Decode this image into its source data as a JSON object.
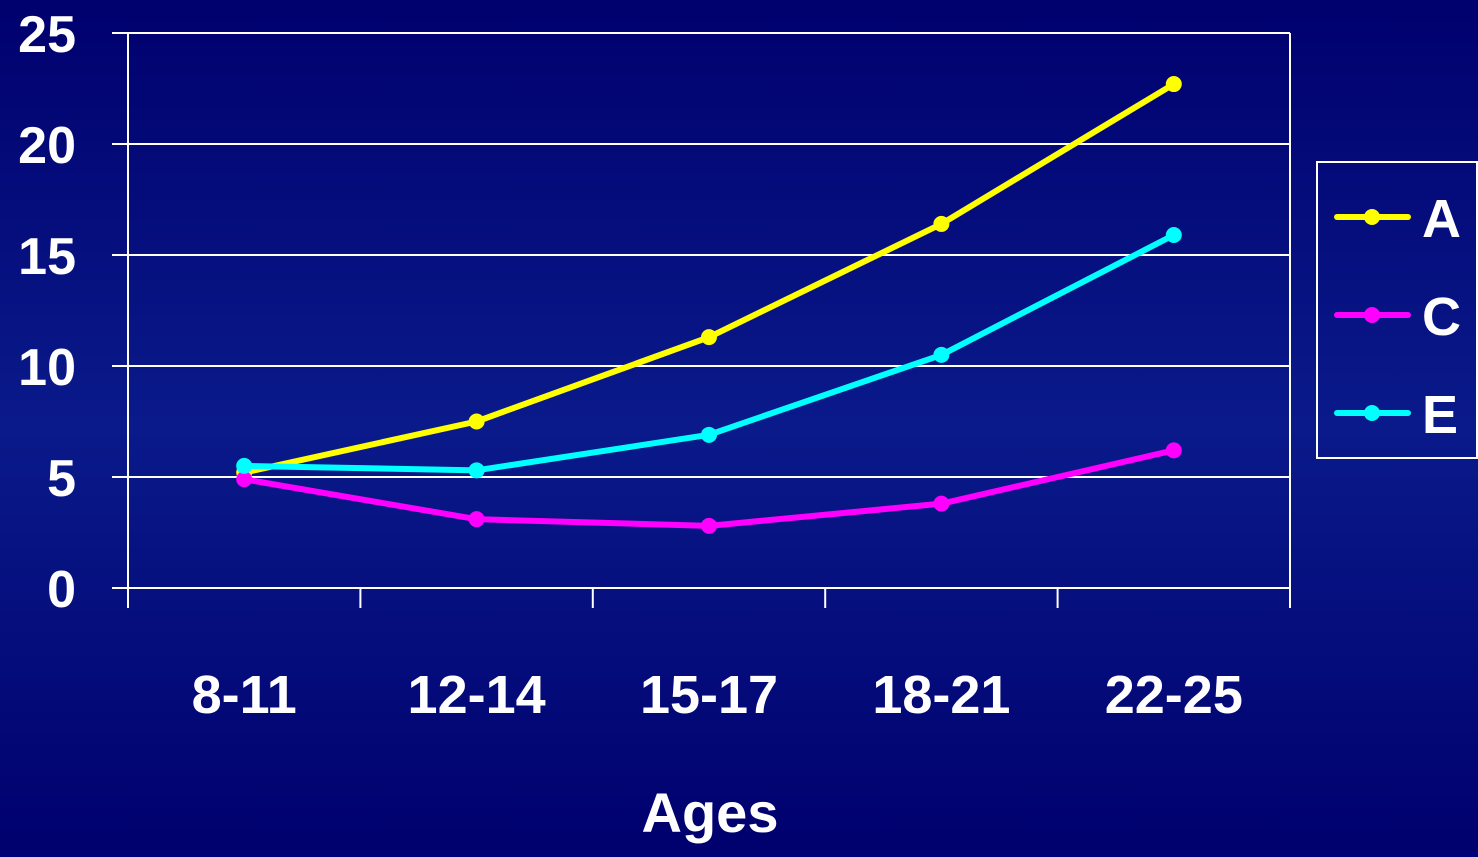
{
  "chart_data": {
    "type": "line",
    "title": "",
    "xlabel": "Ages",
    "ylabel": "",
    "categories": [
      "8-11",
      "12-14",
      "15-17",
      "18-21",
      "22-25"
    ],
    "ylim": [
      0,
      25
    ],
    "yticks": [
      "0",
      "5",
      "10",
      "15",
      "20",
      "25"
    ],
    "grid": true,
    "legend_position": "right",
    "series": [
      {
        "name": "A",
        "color": "#ffff00",
        "values": [
          5.2,
          7.5,
          11.3,
          16.4,
          22.7
        ]
      },
      {
        "name": "C",
        "color": "#ff00ff",
        "values": [
          4.9,
          3.1,
          2.8,
          3.8,
          6.2
        ]
      },
      {
        "name": "E",
        "color": "#00ffff",
        "values": [
          5.5,
          5.3,
          6.9,
          10.5,
          15.9
        ]
      }
    ]
  }
}
